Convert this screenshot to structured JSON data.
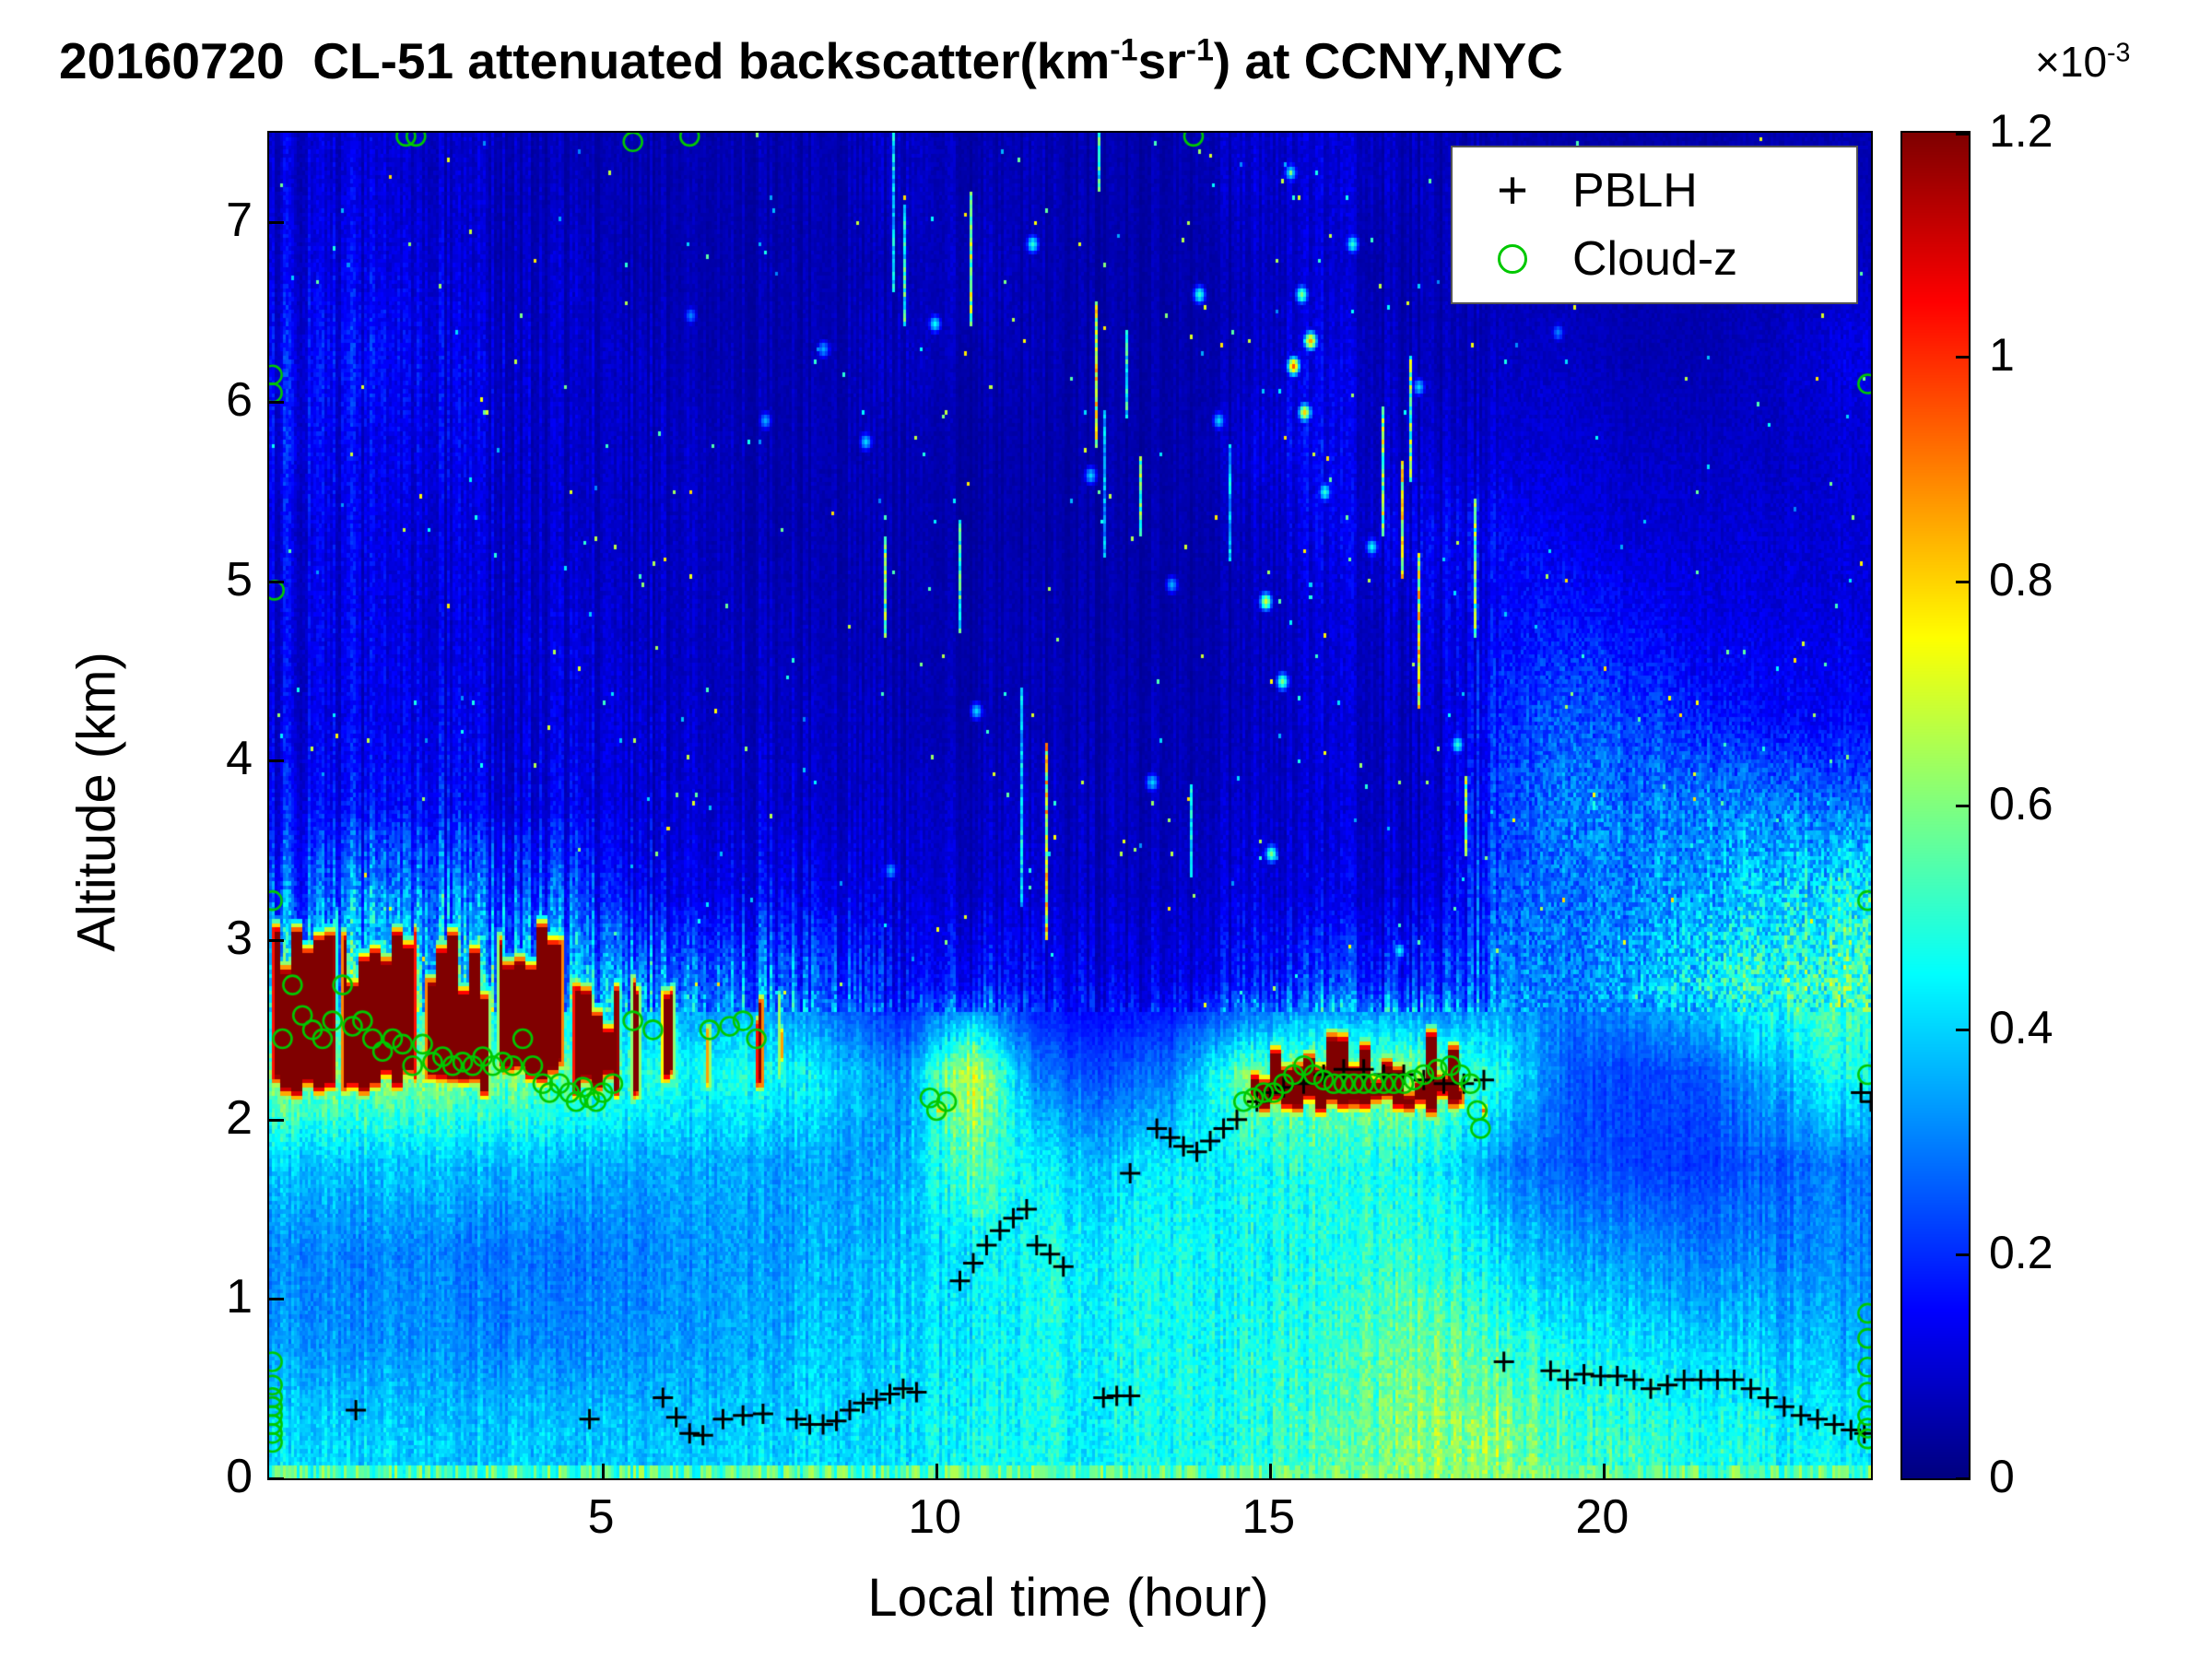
{
  "title": {
    "part1": "20160720  CL-51 attenuated backscatter(km",
    "sup1": "-1",
    "part2": "sr",
    "sup2": "-1",
    "part3": ") at CCNY,NYC"
  },
  "colorbar": {
    "exp_base": "×10",
    "exp_power": "-3",
    "tick_labels": [
      "0",
      "0.2",
      "0.4",
      "0.6",
      "0.8",
      "1",
      "1.2"
    ],
    "tick_values": [
      0,
      0.2,
      0.4,
      0.6,
      0.8,
      1,
      1.2
    ],
    "vmin": 0,
    "vmax": 1.2
  },
  "axes": {
    "xlabel": "Local time (hour)",
    "ylabel": "Altitude (km)",
    "x_tick_labels": [
      "5",
      "10",
      "15",
      "20"
    ],
    "x_tick_values": [
      5,
      10,
      15,
      20
    ],
    "y_tick_labels": [
      "0",
      "1",
      "2",
      "3",
      "4",
      "5",
      "6",
      "7"
    ],
    "y_tick_values": [
      0,
      1,
      2,
      3,
      4,
      5,
      6,
      7
    ],
    "x_range": [
      0,
      24
    ],
    "y_range": [
      0,
      7.5
    ]
  },
  "legend": {
    "items": [
      {
        "marker": "plus",
        "color": "#000000",
        "label": "PBLH"
      },
      {
        "marker": "circle",
        "color": "#00c800",
        "label": "Cloud-z"
      }
    ]
  },
  "chart_data": {
    "type": "heatmap",
    "title": "20160720 CL-51 attenuated backscatter(km⁻¹sr⁻¹) at CCNY,NYC",
    "xlabel": "Local time (hour)",
    "ylabel": "Altitude (km)",
    "x_range_hours": [
      0,
      24
    ],
    "y_range_km": [
      0,
      7.5
    ],
    "colormap": "jet",
    "value_units": "×10⁻³ km⁻¹ sr⁻¹",
    "value_range_x1e3": [
      0,
      1.2
    ],
    "base_grid": {
      "t0": 0.5,
      "dt": 1,
      "z0": 0.25,
      "dz": 0.5,
      "note": "attenuated backscatter ×10⁻³, rows bottom to top (0.25..7.25 km), cols t=0.5..23.5 h",
      "values": [
        [
          0.4,
          0.4,
          0.38,
          0.38,
          0.38,
          0.38,
          0.38,
          0.4,
          0.4,
          0.42,
          0.45,
          0.45,
          0.45,
          0.45,
          0.48,
          0.52,
          0.55,
          0.62,
          0.6,
          0.52,
          0.5,
          0.48,
          0.45,
          0.42
        ],
        [
          0.32,
          0.32,
          0.32,
          0.3,
          0.3,
          0.32,
          0.33,
          0.35,
          0.38,
          0.4,
          0.42,
          0.45,
          0.45,
          0.45,
          0.47,
          0.48,
          0.52,
          0.58,
          0.5,
          0.45,
          0.42,
          0.4,
          0.38,
          0.35
        ],
        [
          0.3,
          0.3,
          0.3,
          0.28,
          0.28,
          0.3,
          0.32,
          0.33,
          0.35,
          0.38,
          0.42,
          0.45,
          0.45,
          0.45,
          0.45,
          0.46,
          0.48,
          0.5,
          0.4,
          0.35,
          0.32,
          0.3,
          0.3,
          0.3
        ],
        [
          0.38,
          0.38,
          0.38,
          0.36,
          0.35,
          0.35,
          0.35,
          0.34,
          0.33,
          0.35,
          0.55,
          0.42,
          0.38,
          0.42,
          0.46,
          0.48,
          0.46,
          0.45,
          0.3,
          0.25,
          0.22,
          0.22,
          0.25,
          0.28
        ],
        [
          0.6,
          0.6,
          0.6,
          0.58,
          0.55,
          0.5,
          0.45,
          0.48,
          0.4,
          0.3,
          0.7,
          0.28,
          0.24,
          0.28,
          0.55,
          0.6,
          0.6,
          0.6,
          0.45,
          0.25,
          0.22,
          0.25,
          0.35,
          0.45
        ],
        [
          0.4,
          0.42,
          0.4,
          0.4,
          0.38,
          0.32,
          0.28,
          0.3,
          0.22,
          0.15,
          0.18,
          0.14,
          0.12,
          0.12,
          0.15,
          0.22,
          0.2,
          0.18,
          0.3,
          0.3,
          0.35,
          0.45,
          0.5,
          0.55
        ],
        [
          0.25,
          0.3,
          0.28,
          0.25,
          0.22,
          0.15,
          0.12,
          0.15,
          0.12,
          0.1,
          0.1,
          0.09,
          0.08,
          0.08,
          0.1,
          0.12,
          0.1,
          0.1,
          0.25,
          0.28,
          0.3,
          0.35,
          0.4,
          0.45
        ],
        [
          0.15,
          0.15,
          0.15,
          0.12,
          0.12,
          0.1,
          0.1,
          0.1,
          0.08,
          0.08,
          0.08,
          0.08,
          0.07,
          0.06,
          0.08,
          0.1,
          0.08,
          0.08,
          0.22,
          0.3,
          0.28,
          0.3,
          0.3,
          0.28
        ],
        [
          0.12,
          0.12,
          0.12,
          0.1,
          0.1,
          0.1,
          0.08,
          0.08,
          0.08,
          0.06,
          0.06,
          0.06,
          0.06,
          0.06,
          0.06,
          0.1,
          0.08,
          0.08,
          0.2,
          0.25,
          0.22,
          0.18,
          0.15,
          0.15
        ],
        [
          0.12,
          0.12,
          0.1,
          0.1,
          0.1,
          0.08,
          0.08,
          0.08,
          0.06,
          0.06,
          0.06,
          0.06,
          0.05,
          0.05,
          0.06,
          0.1,
          0.08,
          0.1,
          0.15,
          0.18,
          0.15,
          0.12,
          0.12,
          0.12
        ],
        [
          0.12,
          0.12,
          0.1,
          0.1,
          0.08,
          0.08,
          0.08,
          0.06,
          0.06,
          0.06,
          0.05,
          0.05,
          0.05,
          0.05,
          0.06,
          0.12,
          0.1,
          0.12,
          0.15,
          0.12,
          0.1,
          0.1,
          0.1,
          0.1
        ],
        [
          0.15,
          0.12,
          0.12,
          0.1,
          0.08,
          0.08,
          0.08,
          0.06,
          0.06,
          0.06,
          0.05,
          0.05,
          0.05,
          0.05,
          0.08,
          0.15,
          0.08,
          0.08,
          0.1,
          0.1,
          0.08,
          0.08,
          0.08,
          0.1
        ],
        [
          0.15,
          0.15,
          0.12,
          0.1,
          0.08,
          0.08,
          0.06,
          0.06,
          0.06,
          0.08,
          0.06,
          0.06,
          0.05,
          0.05,
          0.06,
          0.12,
          0.08,
          0.06,
          0.08,
          0.08,
          0.06,
          0.06,
          0.08,
          0.12
        ],
        [
          0.12,
          0.12,
          0.1,
          0.08,
          0.08,
          0.06,
          0.06,
          0.06,
          0.06,
          0.06,
          0.08,
          0.06,
          0.05,
          0.05,
          0.06,
          0.1,
          0.06,
          0.06,
          0.06,
          0.06,
          0.05,
          0.05,
          0.06,
          0.08
        ],
        [
          0.1,
          0.1,
          0.08,
          0.08,
          0.06,
          0.06,
          0.06,
          0.06,
          0.06,
          0.08,
          0.06,
          0.06,
          0.05,
          0.05,
          0.08,
          0.1,
          0.08,
          0.06,
          0.06,
          0.05,
          0.05,
          0.05,
          0.06,
          0.06
        ]
      ]
    },
    "clouds": [
      [
        0.0,
        1.05,
        2.1,
        3.1,
        1.32
      ],
      [
        1.05,
        2.25,
        2.12,
        3.0,
        1.32
      ],
      [
        2.3,
        3.35,
        2.1,
        2.95,
        1.32
      ],
      [
        3.4,
        4.45,
        2.18,
        3.05,
        1.32
      ],
      [
        4.5,
        5.3,
        2.1,
        2.7,
        1.32
      ],
      [
        5.4,
        5.6,
        2.1,
        2.9,
        1.32
      ],
      [
        5.85,
        6.1,
        2.2,
        2.8,
        1.32
      ],
      [
        6.5,
        6.65,
        2.1,
        2.6,
        1.1
      ],
      [
        7.25,
        7.45,
        2.1,
        2.8,
        1.32
      ],
      [
        7.6,
        7.75,
        2.2,
        2.6,
        1.1
      ],
      [
        9.9,
        10.2,
        1.95,
        2.15,
        1.0
      ],
      [
        14.65,
        17.95,
        2.0,
        2.4,
        1.32
      ],
      [
        18.0,
        18.3,
        1.9,
        2.2,
        1.15
      ]
    ],
    "bright_spots": [
      [
        15.35,
        6.2,
        0.95
      ],
      [
        15.5,
        5.95,
        0.8
      ],
      [
        15.6,
        6.35,
        0.85
      ],
      [
        15.45,
        6.6,
        0.6
      ],
      [
        14.9,
        4.9,
        0.7
      ],
      [
        15.15,
        4.45,
        0.6
      ],
      [
        15.0,
        3.5,
        0.6
      ],
      [
        13.9,
        6.6,
        0.5
      ],
      [
        11.4,
        6.9,
        0.5
      ],
      [
        9.95,
        6.45,
        0.45
      ],
      [
        8.9,
        5.8,
        0.4
      ],
      [
        17.8,
        4.1,
        0.5
      ],
      [
        16.9,
        2.95,
        0.45
      ],
      [
        12.3,
        5.6,
        0.4
      ],
      [
        10.6,
        4.3,
        0.4
      ],
      [
        13.2,
        3.9,
        0.4
      ],
      [
        16.2,
        6.9,
        0.5
      ],
      [
        15.3,
        7.3,
        0.45
      ],
      [
        8.3,
        6.3,
        0.35
      ],
      [
        7.4,
        5.9,
        0.35
      ],
      [
        19.3,
        6.4,
        0.3
      ],
      [
        6.3,
        6.5,
        0.3
      ],
      [
        9.3,
        3.4,
        0.35
      ],
      [
        11.0,
        2.6,
        0.35
      ],
      [
        12.1,
        2.2,
        0.3
      ],
      [
        13.5,
        5.0,
        0.35
      ],
      [
        14.2,
        5.9,
        0.4
      ],
      [
        16.5,
        5.2,
        0.45
      ],
      [
        17.2,
        6.1,
        0.4
      ],
      [
        15.8,
        5.5,
        0.5
      ]
    ],
    "pblh_points": [
      [
        1.3,
        0.38
      ],
      [
        4.8,
        0.33
      ],
      [
        5.9,
        0.45
      ],
      [
        6.1,
        0.34
      ],
      [
        6.3,
        0.25
      ],
      [
        6.5,
        0.24
      ],
      [
        6.8,
        0.33
      ],
      [
        7.1,
        0.35
      ],
      [
        7.4,
        0.36
      ],
      [
        7.9,
        0.33
      ],
      [
        8.1,
        0.3
      ],
      [
        8.3,
        0.3
      ],
      [
        8.5,
        0.32
      ],
      [
        8.7,
        0.38
      ],
      [
        8.9,
        0.42
      ],
      [
        9.1,
        0.44
      ],
      [
        9.3,
        0.47
      ],
      [
        9.5,
        0.5
      ],
      [
        9.7,
        0.48
      ],
      [
        10.35,
        1.1
      ],
      [
        10.55,
        1.2
      ],
      [
        10.75,
        1.3
      ],
      [
        10.95,
        1.38
      ],
      [
        11.15,
        1.45
      ],
      [
        11.35,
        1.5
      ],
      [
        11.5,
        1.3
      ],
      [
        11.7,
        1.25
      ],
      [
        11.9,
        1.18
      ],
      [
        12.5,
        0.45
      ],
      [
        12.7,
        0.46
      ],
      [
        12.9,
        0.46
      ],
      [
        12.9,
        1.7
      ],
      [
        13.3,
        1.95
      ],
      [
        13.5,
        1.9
      ],
      [
        13.7,
        1.85
      ],
      [
        13.9,
        1.82
      ],
      [
        14.1,
        1.88
      ],
      [
        14.3,
        1.95
      ],
      [
        14.5,
        2.0
      ],
      [
        14.8,
        2.1
      ],
      [
        15.0,
        2.15
      ],
      [
        15.2,
        2.18
      ],
      [
        15.5,
        2.2
      ],
      [
        15.8,
        2.25
      ],
      [
        16.1,
        2.28
      ],
      [
        16.4,
        2.28
      ],
      [
        16.7,
        2.25
      ],
      [
        17.0,
        2.25
      ],
      [
        17.3,
        2.22
      ],
      [
        17.6,
        2.2
      ],
      [
        17.9,
        2.2
      ],
      [
        18.2,
        2.22
      ],
      [
        18.5,
        0.65
      ],
      [
        19.2,
        0.6
      ],
      [
        19.45,
        0.55
      ],
      [
        19.7,
        0.58
      ],
      [
        19.95,
        0.57
      ],
      [
        20.2,
        0.57
      ],
      [
        20.45,
        0.55
      ],
      [
        20.7,
        0.5
      ],
      [
        20.95,
        0.52
      ],
      [
        21.2,
        0.55
      ],
      [
        21.45,
        0.55
      ],
      [
        21.7,
        0.55
      ],
      [
        21.95,
        0.55
      ],
      [
        22.2,
        0.5
      ],
      [
        22.45,
        0.45
      ],
      [
        22.7,
        0.4
      ],
      [
        22.95,
        0.35
      ],
      [
        23.2,
        0.33
      ],
      [
        23.45,
        0.3
      ],
      [
        23.7,
        0.27
      ],
      [
        23.9,
        0.25
      ],
      [
        23.85,
        2.15
      ],
      [
        24.0,
        2.1
      ]
    ],
    "cloudz_points": [
      [
        0.05,
        6.15
      ],
      [
        0.05,
        6.05
      ],
      [
        0.08,
        4.95
      ],
      [
        0.05,
        3.22
      ],
      [
        0.05,
        0.65
      ],
      [
        0.05,
        0.52
      ],
      [
        0.05,
        0.45
      ],
      [
        0.05,
        0.4
      ],
      [
        0.05,
        0.35
      ],
      [
        0.05,
        0.3
      ],
      [
        0.05,
        0.25
      ],
      [
        0.05,
        0.2
      ],
      [
        0.2,
        2.45
      ],
      [
        0.35,
        2.75
      ],
      [
        0.5,
        2.58
      ],
      [
        0.65,
        2.5
      ],
      [
        0.8,
        2.45
      ],
      [
        0.95,
        2.55
      ],
      [
        1.1,
        2.75
      ],
      [
        1.25,
        2.52
      ],
      [
        1.4,
        2.55
      ],
      [
        1.55,
        2.45
      ],
      [
        1.7,
        2.38
      ],
      [
        1.85,
        2.45
      ],
      [
        2.0,
        2.42
      ],
      [
        2.15,
        2.3
      ],
      [
        2.3,
        2.42
      ],
      [
        2.45,
        2.32
      ],
      [
        2.6,
        2.35
      ],
      [
        2.75,
        2.3
      ],
      [
        2.9,
        2.32
      ],
      [
        3.05,
        2.3
      ],
      [
        3.2,
        2.35
      ],
      [
        3.35,
        2.3
      ],
      [
        3.5,
        2.32
      ],
      [
        3.65,
        2.3
      ],
      [
        3.8,
        2.45
      ],
      [
        3.95,
        2.3
      ],
      [
        4.1,
        2.2
      ],
      [
        4.2,
        2.15
      ],
      [
        4.35,
        2.2
      ],
      [
        4.5,
        2.15
      ],
      [
        4.6,
        2.1
      ],
      [
        4.7,
        2.18
      ],
      [
        4.8,
        2.12
      ],
      [
        4.9,
        2.1
      ],
      [
        5.0,
        2.15
      ],
      [
        5.15,
        2.2
      ],
      [
        5.45,
        2.55
      ],
      [
        5.75,
        2.5
      ],
      [
        6.6,
        2.5
      ],
      [
        6.9,
        2.52
      ],
      [
        7.1,
        2.55
      ],
      [
        7.3,
        2.45
      ],
      [
        9.9,
        2.12
      ],
      [
        10.0,
        2.05
      ],
      [
        10.15,
        2.1
      ],
      [
        14.6,
        2.1
      ],
      [
        14.75,
        2.12
      ],
      [
        14.9,
        2.15
      ],
      [
        15.05,
        2.15
      ],
      [
        15.2,
        2.2
      ],
      [
        15.35,
        2.25
      ],
      [
        15.5,
        2.3
      ],
      [
        15.65,
        2.25
      ],
      [
        15.8,
        2.22
      ],
      [
        15.95,
        2.2
      ],
      [
        16.1,
        2.2
      ],
      [
        16.25,
        2.2
      ],
      [
        16.4,
        2.2
      ],
      [
        16.55,
        2.2
      ],
      [
        16.7,
        2.2
      ],
      [
        16.85,
        2.2
      ],
      [
        17.0,
        2.2
      ],
      [
        17.15,
        2.22
      ],
      [
        17.3,
        2.25
      ],
      [
        17.5,
        2.28
      ],
      [
        17.7,
        2.3
      ],
      [
        17.85,
        2.25
      ],
      [
        18.0,
        2.2
      ],
      [
        18.1,
        2.05
      ],
      [
        18.15,
        1.95
      ],
      [
        2.05,
        7.48
      ],
      [
        2.2,
        7.48
      ],
      [
        5.45,
        7.45
      ],
      [
        6.3,
        7.48
      ],
      [
        13.85,
        7.48
      ],
      [
        23.95,
        6.1
      ],
      [
        23.95,
        3.22
      ],
      [
        23.95,
        2.25
      ],
      [
        23.95,
        0.92
      ],
      [
        23.95,
        0.78
      ],
      [
        23.95,
        0.62
      ],
      [
        23.95,
        0.48
      ],
      [
        23.95,
        0.35
      ],
      [
        23.95,
        0.28
      ],
      [
        23.95,
        0.22
      ]
    ]
  }
}
